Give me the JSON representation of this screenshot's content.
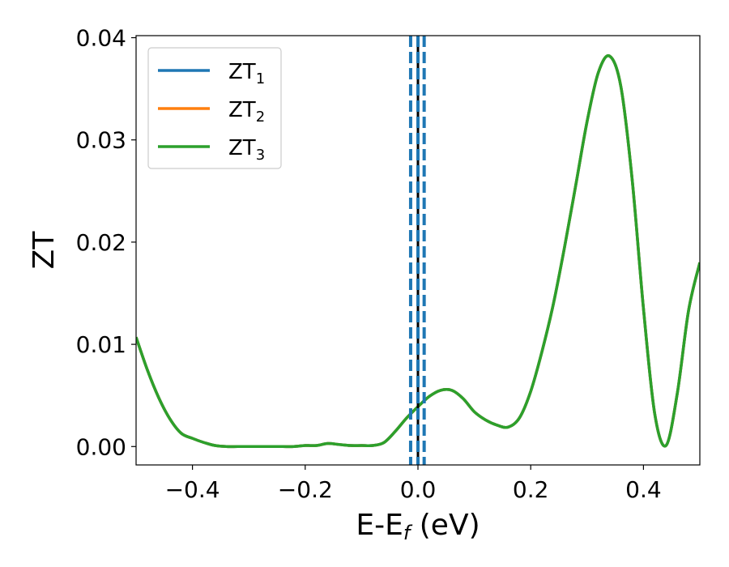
{
  "chart_data": {
    "type": "line",
    "xlabel": {
      "main": "E-E",
      "sub": "f",
      "suffix": " (eV)"
    },
    "ylabel": "ZT",
    "xlim": [
      -0.5,
      0.5
    ],
    "ylim": [
      -0.0018,
      0.0402
    ],
    "xticks": [
      -0.4,
      -0.2,
      0.0,
      0.2,
      0.4
    ],
    "xtick_labels": [
      "−0.4",
      "−0.2",
      "0.0",
      "0.2",
      "0.4"
    ],
    "yticks": [
      0.0,
      0.01,
      0.02,
      0.03,
      0.04
    ],
    "ytick_labels": [
      "0.00",
      "0.01",
      "0.02",
      "0.03",
      "0.04"
    ],
    "legend_position": "top-left",
    "series": [
      {
        "name": "ZT",
        "sub": "1",
        "color": "#1f77b4"
      },
      {
        "name": "ZT",
        "sub": "2",
        "color": "#ff7f0e"
      },
      {
        "name": "ZT",
        "sub": "3",
        "color": "#2ca02c"
      }
    ],
    "curve": {
      "x": [
        -0.5,
        -0.48,
        -0.46,
        -0.44,
        -0.42,
        -0.4,
        -0.38,
        -0.36,
        -0.34,
        -0.32,
        -0.3,
        -0.28,
        -0.26,
        -0.24,
        -0.22,
        -0.2,
        -0.18,
        -0.16,
        -0.14,
        -0.12,
        -0.1,
        -0.08,
        -0.06,
        -0.04,
        -0.02,
        0.0,
        0.02,
        0.04,
        0.06,
        0.08,
        0.1,
        0.12,
        0.14,
        0.16,
        0.18,
        0.2,
        0.22,
        0.24,
        0.26,
        0.28,
        0.3,
        0.32,
        0.34,
        0.36,
        0.38,
        0.4,
        0.42,
        0.44,
        0.46,
        0.48,
        0.5
      ],
      "y": [
        0.0107,
        0.0075,
        0.0048,
        0.0027,
        0.0013,
        0.0008,
        0.0004,
        0.0001,
        0.0,
        0.0,
        0.0,
        0.0,
        0.0,
        0.0,
        0.0,
        0.0001,
        0.0001,
        0.0003,
        0.0002,
        0.0001,
        0.0001,
        0.0001,
        0.0004,
        0.0015,
        0.0028,
        0.0039,
        0.0049,
        0.0055,
        0.0055,
        0.0047,
        0.0034,
        0.0026,
        0.0021,
        0.0019,
        0.0028,
        0.0054,
        0.0093,
        0.0139,
        0.0195,
        0.0256,
        0.0318,
        0.0366,
        0.0382,
        0.0352,
        0.0261,
        0.0135,
        0.0032,
        0.0001,
        0.0052,
        0.0133,
        0.018
      ]
    },
    "vertical_lines": [
      {
        "x": 0.0,
        "style": "solid",
        "color": "#000000"
      },
      {
        "x": -0.013,
        "style": "dashed",
        "color": "#1f77b4"
      },
      {
        "x": 0.0,
        "style": "dashed",
        "color": "#1f77b4"
      },
      {
        "x": 0.011,
        "style": "dashed",
        "color": "#1f77b4"
      }
    ]
  }
}
